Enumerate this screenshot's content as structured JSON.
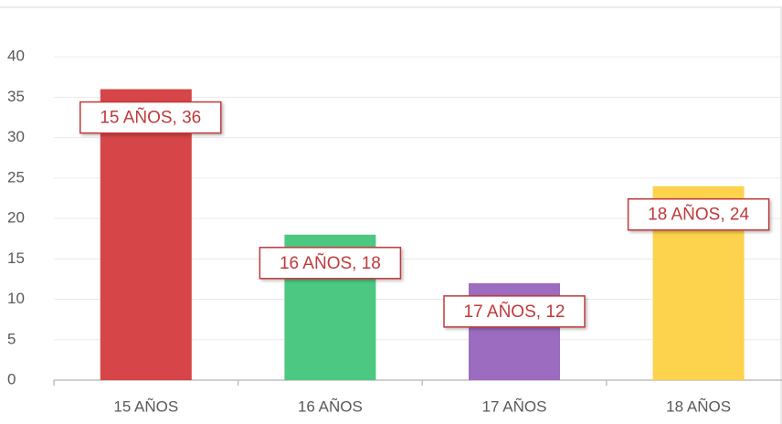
{
  "chart_data": {
    "type": "bar",
    "categories": [
      "15 AÑOS",
      "16 AÑOS",
      "17 AÑOS",
      "18 AÑOS"
    ],
    "values": [
      36,
      18,
      12,
      24
    ],
    "value_labels": [
      "15 AÑOS, 36",
      "16 AÑOS, 18",
      "17 AÑOS, 12",
      "18 AÑOS, 24"
    ],
    "colors": [
      "#d64548",
      "#4cc882",
      "#9b6cc0",
      "#fdd24d"
    ],
    "ylim": [
      0,
      45
    ],
    "yticks": [
      0,
      5,
      10,
      15,
      20,
      25,
      30,
      35,
      40
    ],
    "grid": true
  }
}
